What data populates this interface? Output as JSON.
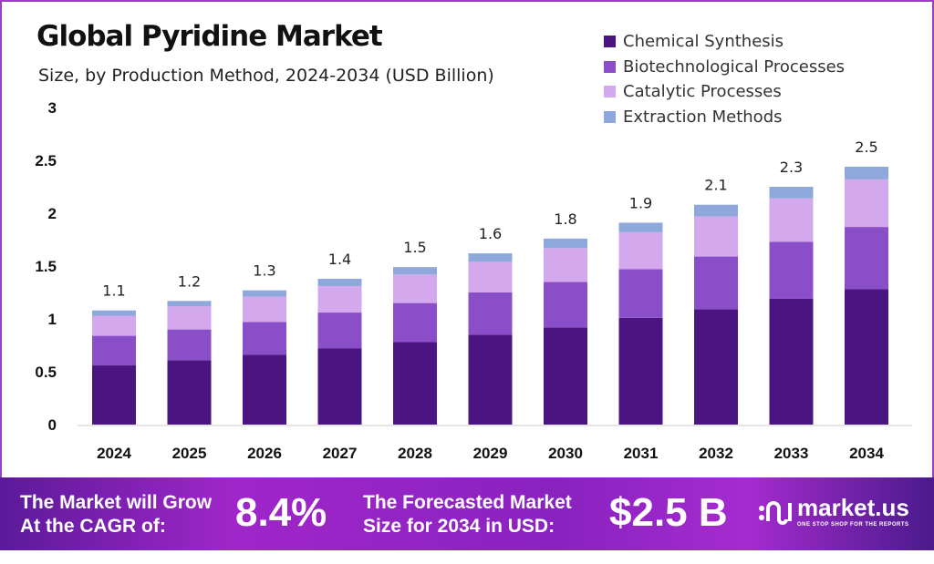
{
  "header": {
    "title": "Global Pyridine Market",
    "subtitle": "Size, by Production Method, 2024-2034 (USD Billion)"
  },
  "chart_data": {
    "type": "bar",
    "stacked": true,
    "title": "Global Pyridine Market",
    "subtitle": "Size, by Production Method, 2024-2034 (USD Billion)",
    "categories": [
      "2024",
      "2025",
      "2026",
      "2027",
      "2028",
      "2029",
      "2030",
      "2031",
      "2032",
      "2033",
      "2034"
    ],
    "series": [
      {
        "name": "Chemical Synthesis",
        "color": "#4a1580",
        "values": [
          0.56,
          0.61,
          0.66,
          0.72,
          0.78,
          0.85,
          0.92,
          1.01,
          1.09,
          1.19,
          1.28
        ]
      },
      {
        "name": "Biotechnological Processes",
        "color": "#8a4fc8",
        "values": [
          0.28,
          0.29,
          0.31,
          0.34,
          0.37,
          0.4,
          0.43,
          0.46,
          0.5,
          0.54,
          0.59
        ]
      },
      {
        "name": "Catalytic Processes",
        "color": "#d4a8ec",
        "values": [
          0.19,
          0.22,
          0.24,
          0.25,
          0.27,
          0.29,
          0.32,
          0.35,
          0.38,
          0.41,
          0.45
        ]
      },
      {
        "name": "Extraction Methods",
        "color": "#8fa8dc",
        "values": [
          0.05,
          0.05,
          0.06,
          0.07,
          0.07,
          0.08,
          0.09,
          0.09,
          0.11,
          0.11,
          0.12
        ]
      }
    ],
    "totals_labels": [
      "1.1",
      "1.2",
      "1.3",
      "1.4",
      "1.5",
      "1.6",
      "1.8",
      "1.9",
      "2.1",
      "2.3",
      "2.5"
    ],
    "y_ticks": [
      "0",
      "0.5",
      "1",
      "1.5",
      "2",
      "2.5",
      "3"
    ],
    "ylim": [
      0,
      3
    ],
    "grid": false,
    "legend_position": "top-right"
  },
  "banner": {
    "cagr_label": "The Market will Grow At the CAGR of:",
    "cagr_value": "8.4%",
    "forecast_label": "The Forecasted Market Size for 2034 in USD:",
    "forecast_value": "$2.5 B",
    "logo_name": "market.us",
    "logo_tagline": "ONE STOP SHOP FOR THE REPORTS"
  }
}
